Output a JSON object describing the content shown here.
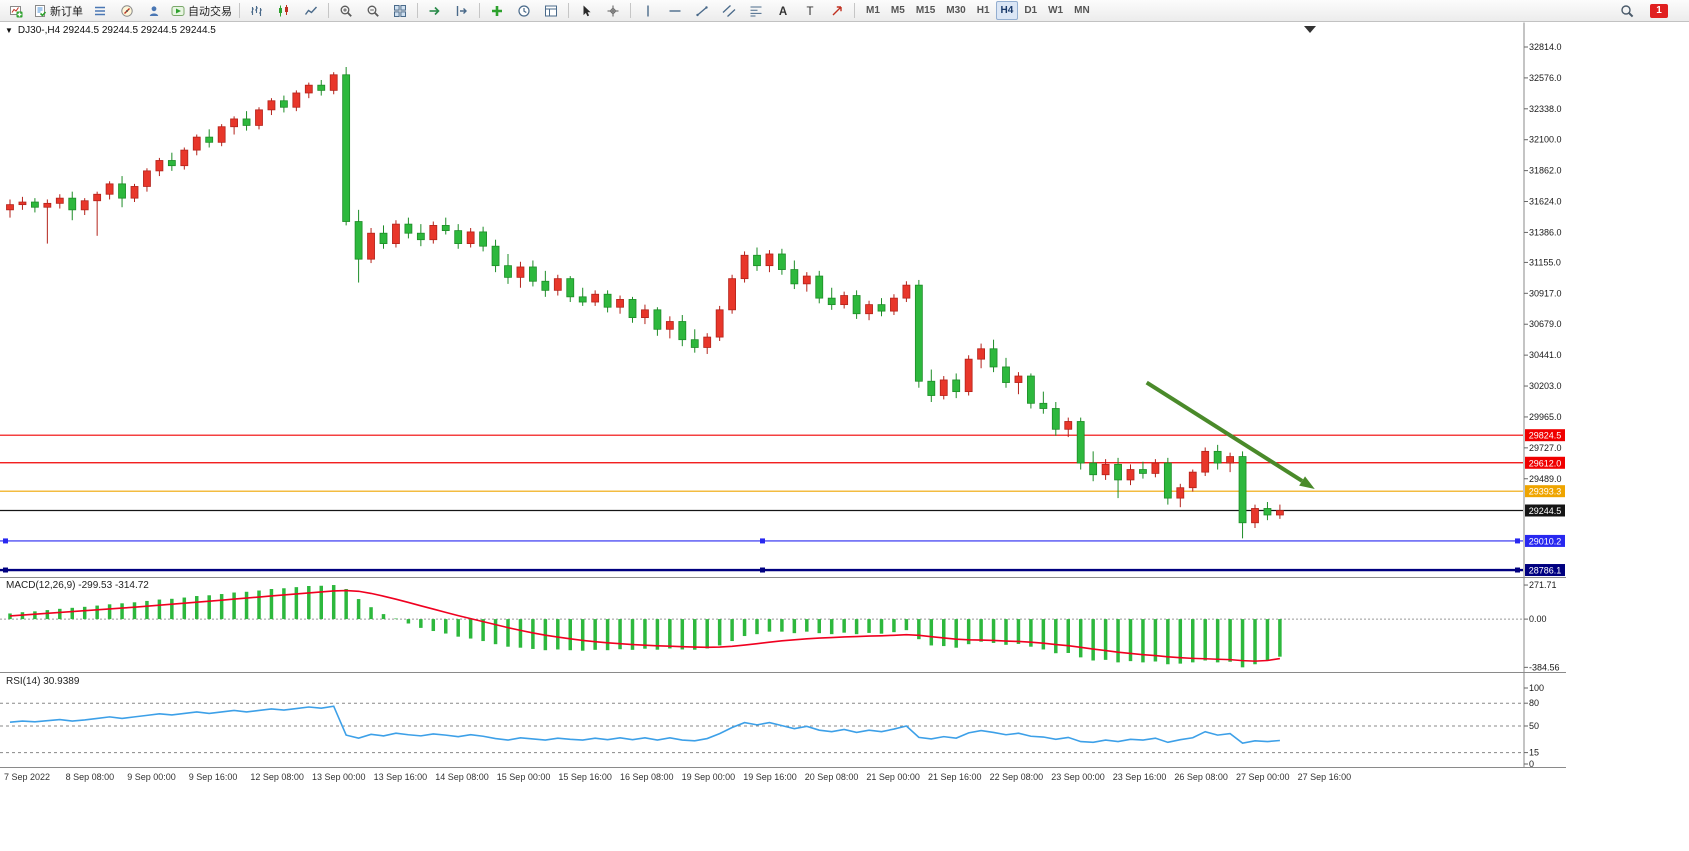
{
  "toolbar": {
    "new_order_label": "新订单",
    "autotrading_label": "自动交易",
    "notification_count": "1",
    "timeframes": [
      "M1",
      "M5",
      "M15",
      "M30",
      "H1",
      "H4",
      "D1",
      "W1",
      "MN"
    ],
    "active_timeframe": "H4",
    "buttons": [
      {
        "name": "new-chart",
        "icon": "new-chart"
      },
      {
        "name": "new-order",
        "icon": "new-order",
        "label_key": "new_order_label"
      },
      {
        "name": "market-watch",
        "icon": "market-watch"
      },
      {
        "name": "navigator",
        "icon": "navigator"
      },
      {
        "name": "accounts",
        "icon": "community"
      },
      {
        "name": "autotrading",
        "icon": "autotrading",
        "label_key": "autotrading_label"
      },
      {
        "sep": true
      },
      {
        "name": "chart-bars",
        "icon": "chart-bars"
      },
      {
        "name": "chart-candles",
        "icon": "chart-candles"
      },
      {
        "name": "chart-line",
        "icon": "chart-line"
      },
      {
        "sep": true
      },
      {
        "name": "zoom-in",
        "icon": "zoom-in"
      },
      {
        "name": "zoom-out",
        "icon": "zoom-out"
      },
      {
        "name": "tile-windows",
        "icon": "tile-windows"
      },
      {
        "sep": true
      },
      {
        "name": "auto-scroll",
        "icon": "auto-scroll"
      },
      {
        "name": "chart-shift",
        "icon": "chart-shift"
      },
      {
        "sep": true
      },
      {
        "name": "indicators",
        "icon": "indicators"
      },
      {
        "name": "periods",
        "icon": "periods"
      },
      {
        "name": "templates",
        "icon": "templates"
      },
      {
        "sep": true
      },
      {
        "name": "cursor",
        "icon": "cursor"
      },
      {
        "name": "crosshair",
        "icon": "crosshair"
      },
      {
        "sep": true
      },
      {
        "name": "vertical-line",
        "icon": "vertical-line"
      },
      {
        "name": "horizontal-line",
        "icon": "horizontal-line"
      },
      {
        "name": "trendline",
        "icon": "trendline"
      },
      {
        "name": "channel",
        "icon": "channel"
      },
      {
        "name": "fibonacci",
        "icon": "fibonacci"
      },
      {
        "name": "text",
        "icon": "text"
      },
      {
        "name": "text-label",
        "icon": "text-label"
      },
      {
        "name": "arrows",
        "icon": "arrows"
      },
      {
        "sep": true
      }
    ]
  },
  "icons": {
    "dropdown_arrow": "▼"
  },
  "chart": {
    "symbol_info": "DJ30-,H4 29244.5 29244.5 29244.5 29244.5",
    "macd_label": "MACD(12,26,9) -299.53 -314.72",
    "rsi_label": "RSI(14) 30.9389"
  },
  "chart_data": {
    "type": "candlestick",
    "symbol": "DJ30-",
    "timeframe": "H4",
    "last_ohlc": {
      "open": 29244.5,
      "high": 29244.5,
      "low": 29244.5,
      "close": 29244.5
    },
    "colors": {
      "up": "#e8362a",
      "up_stroke": "#b3221a",
      "down": "#2db83d",
      "down_stroke": "#1d8c27",
      "macd_hist": "#2db83d",
      "macd_signal": "#f00020",
      "rsi_line": "#3da0e8",
      "arrow": "#4a8a2a"
    },
    "price_axis": {
      "ticks": [
        32814.0,
        32576.0,
        32338.0,
        32100.0,
        31862.0,
        31624.0,
        31386.0,
        31155.0,
        30917.0,
        30679.0,
        30441.0,
        30203.0,
        29965.0,
        29727.0,
        29489.0
      ]
    },
    "x_labels": [
      "7 Sep 2022",
      "8 Sep 08:00",
      "9 Sep 00:00",
      "9 Sep 16:00",
      "12 Sep 08:00",
      "13 Sep 00:00",
      "13 Sep 16:00",
      "14 Sep 08:00",
      "15 Sep 00:00",
      "15 Sep 16:00",
      "16 Sep 08:00",
      "19 Sep 00:00",
      "19 Sep 16:00",
      "20 Sep 08:00",
      "21 Sep 00:00",
      "21 Sep 16:00",
      "22 Sep 08:00",
      "23 Sep 00:00",
      "23 Sep 16:00",
      "26 Sep 08:00",
      "27 Sep 00:00",
      "27 Sep 16:00"
    ],
    "hlines": [
      {
        "price": 29824.5,
        "color": "#f00000"
      },
      {
        "price": 29612.0,
        "color": "#f00000"
      },
      {
        "price": 29393.3,
        "color": "#efa500"
      },
      {
        "price": 29244.5,
        "color": "#151515"
      },
      {
        "price": 29010.2,
        "color": "#2828f0",
        "handles": true
      },
      {
        "price": 28786.1,
        "color": "#000080",
        "handles": true,
        "width": 2.4
      }
    ],
    "arrow": {
      "from_bar": 91.3,
      "from_price": 30230,
      "to_bar": 104.8,
      "to_price": 29410
    },
    "ohlc": [
      [
        31560,
        31640,
        31500,
        31600
      ],
      [
        31600,
        31660,
        31560,
        31620
      ],
      [
        31620,
        31650,
        31540,
        31580
      ],
      [
        31580,
        31640,
        31300,
        31610
      ],
      [
        31610,
        31680,
        31570,
        31650
      ],
      [
        31650,
        31700,
        31480,
        31560
      ],
      [
        31560,
        31650,
        31520,
        31630
      ],
      [
        31630,
        31700,
        31360,
        31680
      ],
      [
        31680,
        31780,
        31640,
        31760
      ],
      [
        31760,
        31820,
        31580,
        31650
      ],
      [
        31650,
        31760,
        31620,
        31740
      ],
      [
        31740,
        31880,
        31700,
        31860
      ],
      [
        31860,
        31960,
        31820,
        31940
      ],
      [
        31940,
        32000,
        31860,
        31900
      ],
      [
        31900,
        32040,
        31870,
        32020
      ],
      [
        32020,
        32140,
        31980,
        32120
      ],
      [
        32120,
        32180,
        32040,
        32080
      ],
      [
        32080,
        32220,
        32050,
        32200
      ],
      [
        32200,
        32280,
        32140,
        32260
      ],
      [
        32260,
        32320,
        32170,
        32210
      ],
      [
        32210,
        32350,
        32180,
        32330
      ],
      [
        32330,
        32420,
        32290,
        32400
      ],
      [
        32400,
        32440,
        32310,
        32350
      ],
      [
        32350,
        32480,
        32320,
        32460
      ],
      [
        32460,
        32540,
        32420,
        32520
      ],
      [
        32520,
        32560,
        32440,
        32480
      ],
      [
        32480,
        32620,
        32450,
        32600
      ],
      [
        32600,
        32660,
        31440,
        31470
      ],
      [
        31470,
        31560,
        31000,
        31180
      ],
      [
        31180,
        31420,
        31150,
        31380
      ],
      [
        31380,
        31440,
        31260,
        31300
      ],
      [
        31300,
        31480,
        31270,
        31450
      ],
      [
        31450,
        31500,
        31340,
        31380
      ],
      [
        31380,
        31450,
        31280,
        31330
      ],
      [
        31330,
        31470,
        31300,
        31440
      ],
      [
        31440,
        31500,
        31370,
        31400
      ],
      [
        31400,
        31450,
        31260,
        31300
      ],
      [
        31300,
        31420,
        31270,
        31390
      ],
      [
        31390,
        31430,
        31240,
        31280
      ],
      [
        31280,
        31330,
        31080,
        31130
      ],
      [
        31130,
        31220,
        30990,
        31040
      ],
      [
        31040,
        31160,
        30960,
        31120
      ],
      [
        31120,
        31170,
        30970,
        31010
      ],
      [
        31010,
        31090,
        30890,
        30940
      ],
      [
        30940,
        31060,
        30900,
        31030
      ],
      [
        31030,
        31050,
        30850,
        30890
      ],
      [
        30890,
        30960,
        30820,
        30850
      ],
      [
        30850,
        30940,
        30820,
        30910
      ],
      [
        30910,
        30940,
        30770,
        30810
      ],
      [
        30810,
        30900,
        30760,
        30870
      ],
      [
        30870,
        30890,
        30690,
        30730
      ],
      [
        30730,
        30830,
        30680,
        30790
      ],
      [
        30790,
        30810,
        30590,
        30640
      ],
      [
        30640,
        30740,
        30570,
        30700
      ],
      [
        30700,
        30750,
        30510,
        30560
      ],
      [
        30560,
        30640,
        30460,
        30500
      ],
      [
        30500,
        30610,
        30450,
        30580
      ],
      [
        30580,
        30820,
        30550,
        30790
      ],
      [
        30790,
        31060,
        30760,
        31030
      ],
      [
        31030,
        31240,
        31000,
        31210
      ],
      [
        31210,
        31270,
        31090,
        31130
      ],
      [
        31130,
        31250,
        31080,
        31220
      ],
      [
        31220,
        31260,
        31060,
        31100
      ],
      [
        31100,
        31170,
        30950,
        30990
      ],
      [
        30990,
        31080,
        30930,
        31050
      ],
      [
        31050,
        31090,
        30840,
        30880
      ],
      [
        30880,
        30960,
        30790,
        30830
      ],
      [
        30830,
        30930,
        30800,
        30900
      ],
      [
        30900,
        30940,
        30720,
        30760
      ],
      [
        30760,
        30860,
        30710,
        30830
      ],
      [
        30830,
        30880,
        30740,
        30780
      ],
      [
        30780,
        30910,
        30750,
        30880
      ],
      [
        30880,
        31010,
        30850,
        30980
      ],
      [
        30980,
        31020,
        30190,
        30240
      ],
      [
        30240,
        30330,
        30080,
        30130
      ],
      [
        30130,
        30280,
        30100,
        30250
      ],
      [
        30250,
        30300,
        30110,
        30160
      ],
      [
        30160,
        30440,
        30130,
        30410
      ],
      [
        30410,
        30530,
        30340,
        30490
      ],
      [
        30490,
        30560,
        30310,
        30350
      ],
      [
        30350,
        30420,
        30190,
        30230
      ],
      [
        30230,
        30310,
        30140,
        30280
      ],
      [
        30280,
        30300,
        30030,
        30070
      ],
      [
        30070,
        30160,
        29990,
        30030
      ],
      [
        30030,
        30080,
        29820,
        29870
      ],
      [
        29870,
        29960,
        29810,
        29930
      ],
      [
        29930,
        29960,
        29560,
        29610
      ],
      [
        29610,
        29700,
        29470,
        29520
      ],
      [
        29520,
        29640,
        29480,
        29600
      ],
      [
        29600,
        29650,
        29340,
        29480
      ],
      [
        29480,
        29600,
        29440,
        29560
      ],
      [
        29560,
        29620,
        29490,
        29530
      ],
      [
        29530,
        29640,
        29500,
        29610
      ],
      [
        29610,
        29650,
        29290,
        29340
      ],
      [
        29340,
        29450,
        29270,
        29420
      ],
      [
        29420,
        29560,
        29390,
        29540
      ],
      [
        29540,
        29730,
        29510,
        29700
      ],
      [
        29700,
        29750,
        29560,
        29610
      ],
      [
        29610,
        29690,
        29540,
        29660
      ],
      [
        29660,
        29700,
        29030,
        29150
      ],
      [
        29150,
        29290,
        29110,
        29260
      ],
      [
        29260,
        29310,
        29170,
        29210
      ],
      [
        29210,
        29290,
        29180,
        29244.5
      ]
    ],
    "macd": {
      "label": "MACD(12,26,9)",
      "value": -299.53,
      "signal_value": -314.72,
      "axis_labels": [
        271.71,
        0.0,
        -384.56
      ],
      "histogram": [
        45,
        55,
        62,
        72,
        82,
        90,
        98,
        108,
        118,
        126,
        134,
        145,
        156,
        162,
        172,
        184,
        190,
        200,
        212,
        218,
        228,
        240,
        246,
        255,
        264,
        266,
        271.7,
        240,
        160,
        95,
        40,
        5,
        -35,
        -70,
        -95,
        -115,
        -140,
        -155,
        -175,
        -200,
        -220,
        -228,
        -238,
        -248,
        -242,
        -248,
        -252,
        -245,
        -248,
        -240,
        -245,
        -236,
        -244,
        -234,
        -242,
        -244,
        -234,
        -210,
        -175,
        -135,
        -120,
        -100,
        -100,
        -112,
        -100,
        -112,
        -120,
        -108,
        -120,
        -110,
        -116,
        -104,
        -88,
        -160,
        -210,
        -215,
        -228,
        -200,
        -180,
        -190,
        -205,
        -198,
        -220,
        -242,
        -272,
        -270,
        -305,
        -330,
        -325,
        -345,
        -335,
        -345,
        -338,
        -360,
        -355,
        -345,
        -330,
        -345,
        -340,
        -384.6,
        -360,
        -330,
        -299.5
      ],
      "signal": [
        25,
        32,
        39,
        46,
        53,
        60,
        67,
        74,
        81,
        88,
        95,
        103,
        111,
        119,
        127,
        135,
        143,
        151,
        160,
        168,
        176,
        185,
        193,
        201,
        209,
        217,
        225,
        228,
        222,
        205,
        183,
        159,
        133,
        106,
        80,
        54,
        28,
        4,
        -20,
        -44,
        -68,
        -90,
        -110,
        -128,
        -143,
        -157,
        -170,
        -180,
        -189,
        -196,
        -203,
        -208,
        -213,
        -216,
        -220,
        -223,
        -225,
        -223,
        -217,
        -207,
        -196,
        -184,
        -173,
        -165,
        -157,
        -151,
        -147,
        -142,
        -139,
        -135,
        -133,
        -129,
        -124,
        -129,
        -140,
        -150,
        -160,
        -165,
        -167,
        -170,
        -175,
        -178,
        -184,
        -192,
        -203,
        -212,
        -225,
        -239,
        -251,
        -264,
        -274,
        -284,
        -291,
        -301,
        -308,
        -313,
        -316,
        -320,
        -323,
        -331,
        -335,
        -330,
        -314.7
      ]
    },
    "rsi": {
      "label": "RSI(14)",
      "value": 30.9389,
      "levels": [
        80,
        50,
        15
      ],
      "axis_labels": [
        100,
        80,
        50,
        15,
        0
      ],
      "series": [
        55,
        56.5,
        55.5,
        57,
        58.5,
        56.5,
        58,
        60,
        62,
        60,
        62,
        64,
        66,
        64.5,
        66.5,
        68.5,
        66.5,
        68.5,
        70.5,
        68.5,
        70.5,
        72.5,
        71,
        73,
        75,
        73.5,
        76,
        38,
        34,
        39,
        37,
        40.5,
        38.5,
        37,
        39.5,
        38,
        36,
        38.5,
        36.5,
        33.5,
        31.5,
        34.5,
        33,
        31.5,
        34,
        32.5,
        31.5,
        34,
        32,
        34.5,
        32,
        34.5,
        31.5,
        34.5,
        31.5,
        30.5,
        33.5,
        40,
        48,
        54.5,
        51.5,
        54.5,
        50.5,
        46.5,
        49.5,
        44.5,
        42.5,
        45.5,
        41.5,
        44.5,
        42.5,
        46,
        50,
        35,
        33,
        36,
        34,
        41,
        44,
        41.5,
        38.5,
        40.5,
        36.5,
        35.5,
        32.5,
        35,
        29.5,
        28.5,
        31.5,
        29.5,
        32.5,
        31.5,
        34,
        28.5,
        32,
        34.5,
        42.5,
        38,
        40,
        27.5,
        30.5,
        29.5,
        30.94
      ]
    }
  }
}
